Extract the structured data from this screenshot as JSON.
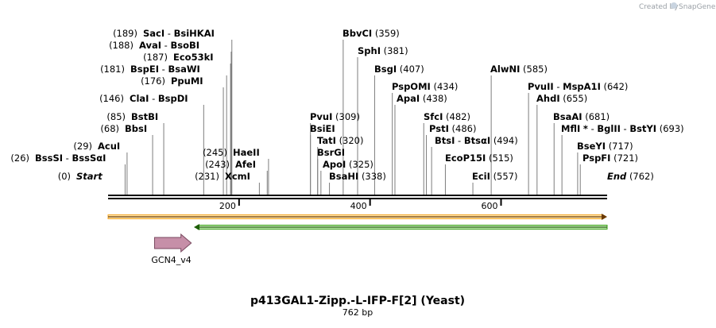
{
  "map": {
    "name": "p413GAL1-Zipp.-L-IFP-F[2] (Yeast)",
    "length_label": "762 bp",
    "length_bp": 762,
    "credit": "Created by",
    "brand": "SnapGene",
    "ticks": [
      {
        "bp": 200,
        "label": "200"
      },
      {
        "bp": 400,
        "label": "400"
      },
      {
        "bp": 600,
        "label": "600"
      }
    ],
    "colors": {
      "backbone": "#000000",
      "upper_arrow_outline": "#f5a623",
      "upper_arrow_fill": "#fde7b2",
      "lower_arrow": "#3aa015",
      "lower_arrow_fill": "#c9ecbc",
      "feature_fill": "#c68fa8",
      "feature_stroke": "#7a4a60"
    }
  },
  "site_lines": [
    {
      "id": "s1",
      "label": "(0)  Start  ·  End  (762)"
    }
  ],
  "labels": [
    {
      "id": "start",
      "bp": 0,
      "cut": 0,
      "num": "(0)",
      "name": "Start",
      "kind": "term",
      "side": "right"
    },
    {
      "id": "end",
      "bp": 762,
      "cut": 762,
      "num": "(762)",
      "name": "End",
      "kind": "term",
      "side": "left"
    },
    {
      "id": "bsssi",
      "bp": 26,
      "num": "(26)",
      "name": "BssSI",
      "name2": "BssSαI",
      "side": "right"
    },
    {
      "id": "acui",
      "bp": 29,
      "num": "(29)",
      "name": "AcuI",
      "side": "right"
    },
    {
      "id": "bbsi",
      "bp": 68,
      "num": "(68)",
      "name": "BbsI",
      "side": "right"
    },
    {
      "id": "bstbi",
      "bp": 85,
      "num": "(85)",
      "name": "BstBI",
      "side": "right"
    },
    {
      "id": "clai",
      "bp": 146,
      "num": "(146)",
      "name": "ClaI",
      "name2": "BspDI",
      "side": "right"
    },
    {
      "id": "ppumi",
      "bp": 176,
      "num": "(176)",
      "name": "PpuMI",
      "side": "right"
    },
    {
      "id": "bspei",
      "bp": 181,
      "num": "(181)",
      "name": "BspEI",
      "name2": "BsaWI",
      "side": "right"
    },
    {
      "id": "eco53ki",
      "bp": 187,
      "num": "(187)",
      "name": "Eco53kI",
      "side": "right"
    },
    {
      "id": "avai",
      "bp": 188,
      "num": "(188)",
      "name": "AvaI",
      "name2": "BsoBI",
      "side": "right"
    },
    {
      "id": "saci",
      "bp": 189,
      "num": "(189)",
      "name": "SacI",
      "name2": "BsiHKAI",
      "side": "right"
    },
    {
      "id": "xcmi",
      "bp": 231,
      "num": "(231)",
      "name": "XcmI",
      "side": "right"
    },
    {
      "id": "afei",
      "bp": 243,
      "num": "(243)",
      "name": "AfeI",
      "side": "right"
    },
    {
      "id": "haeii",
      "bp": 245,
      "num": "(245)",
      "name": "HaeII",
      "side": "right"
    },
    {
      "id": "pvui",
      "bp": 309,
      "num": "(309)",
      "name": "PvuI",
      "side": "left"
    },
    {
      "id": "bsiei",
      "bp": 309,
      "num": "",
      "name": "BsiEI",
      "side": "left"
    },
    {
      "id": "tati",
      "bp": 320,
      "num": "(320)",
      "name": "TatI",
      "side": "left"
    },
    {
      "id": "bsrgi",
      "bp": 320,
      "num": "",
      "name": "BsrGI",
      "side": "left"
    },
    {
      "id": "apoi",
      "bp": 325,
      "num": "(325)",
      "name": "ApoI",
      "side": "left"
    },
    {
      "id": "bsahi",
      "bp": 338,
      "num": "(338)",
      "name": "BsaHI",
      "side": "left"
    },
    {
      "id": "bbvci",
      "bp": 359,
      "num": "(359)",
      "name": "BbvCI",
      "side": "left"
    },
    {
      "id": "sphi",
      "bp": 381,
      "num": "(381)",
      "name": "SphI",
      "side": "left"
    },
    {
      "id": "bsgi",
      "bp": 407,
      "num": "(407)",
      "name": "BsgI",
      "side": "left"
    },
    {
      "id": "pspomi",
      "bp": 434,
      "num": "(434)",
      "name": "PspOMI",
      "side": "left"
    },
    {
      "id": "apai",
      "bp": 438,
      "num": "(438)",
      "name": "ApaI",
      "side": "left"
    },
    {
      "id": "sfci",
      "bp": 482,
      "num": "(482)",
      "name": "SfcI",
      "side": "left"
    },
    {
      "id": "psti",
      "bp": 486,
      "num": "(486)",
      "name": "PstI",
      "side": "left"
    },
    {
      "id": "btsi",
      "bp": 494,
      "num": "(494)",
      "name": "BtsI",
      "name2": "BtsαI",
      "side": "left"
    },
    {
      "id": "ecop15i",
      "bp": 515,
      "num": "(515)",
      "name": "EcoP15I",
      "side": "left"
    },
    {
      "id": "ecii",
      "bp": 557,
      "num": "(557)",
      "name": "EciI",
      "side": "left"
    },
    {
      "id": "alwni",
      "bp": 585,
      "num": "(585)",
      "name": "AlwNI",
      "side": "left"
    },
    {
      "id": "pvuii",
      "bp": 642,
      "num": "(642)",
      "name": "PvuII",
      "name2": "MspA1I",
      "side": "left"
    },
    {
      "id": "ahdi",
      "bp": 655,
      "num": "(655)",
      "name": "AhdI",
      "side": "left"
    },
    {
      "id": "bsaai",
      "bp": 681,
      "num": "(681)",
      "name": "BsaAI",
      "side": "left"
    },
    {
      "id": "mfli",
      "bp": 693,
      "num": "(693)",
      "name": "MflI",
      "star": "*",
      "name2": "BglII",
      "name3": "BstYI",
      "side": "left"
    },
    {
      "id": "bseyi",
      "bp": 717,
      "num": "(717)",
      "name": "BseYI",
      "side": "left"
    },
    {
      "id": "psphi",
      "bp": 721,
      "num": "(721)",
      "name": "PspFI",
      "side": "left"
    }
  ],
  "features": [
    {
      "id": "gcn4",
      "label": "GCN4_v4",
      "start_bp": 71,
      "end_bp": 127,
      "direction": "forward"
    }
  ],
  "strands": [
    {
      "id": "upper",
      "start_bp": 0,
      "end_bp": 762,
      "direction": "forward"
    },
    {
      "id": "lower",
      "start_bp": 131,
      "end_bp": 762,
      "direction": "reverse"
    }
  ]
}
